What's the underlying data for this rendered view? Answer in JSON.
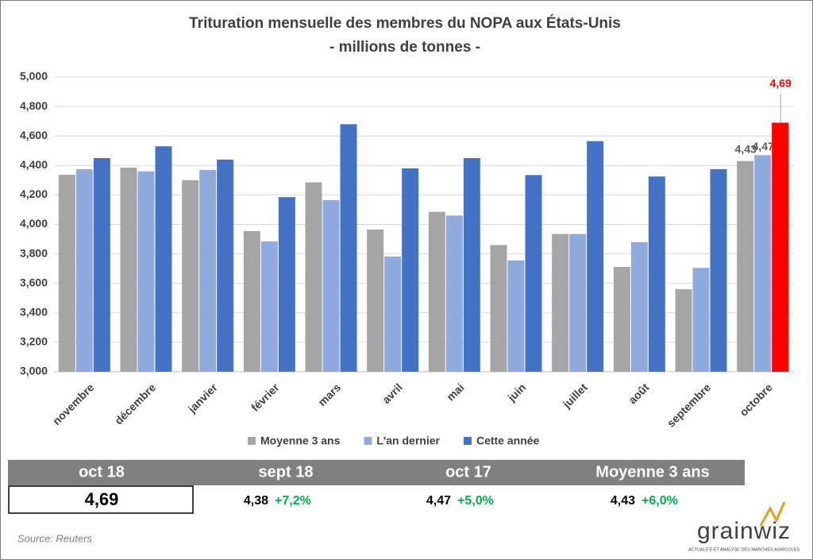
{
  "chart_data": {
    "type": "bar",
    "title": "Trituration mensuelle des membres du NOPA aux États-Unis",
    "subtitle": "- millions de tonnes -",
    "categories": [
      "novembre",
      "décembre",
      "janvier",
      "février",
      "mars",
      "avril",
      "mai",
      "juin",
      "juillet",
      "août",
      "septembre",
      "octobre"
    ],
    "series": [
      {
        "name": "Moyenne 3 ans",
        "color": "#a5a5a5",
        "values": [
          4337,
          4385,
          4300,
          3955,
          4285,
          3965,
          4085,
          3860,
          3935,
          3712,
          3560,
          4430
        ],
        "value_labels": [
          null,
          null,
          null,
          null,
          null,
          null,
          null,
          null,
          null,
          null,
          null,
          "4,43"
        ]
      },
      {
        "name": "L'an dernier",
        "color": "#8faadc",
        "values": [
          4375,
          4360,
          4370,
          3885,
          4165,
          3782,
          4060,
          3755,
          3935,
          3880,
          3705,
          4470
        ],
        "value_labels": [
          null,
          null,
          null,
          null,
          null,
          null,
          null,
          null,
          null,
          null,
          null,
          "4,47"
        ]
      },
      {
        "name": "Cette année",
        "color": "#4472c4",
        "values": [
          4450,
          4530,
          4440,
          4185,
          4680,
          4380,
          4450,
          4335,
          4565,
          4325,
          4375,
          4690
        ],
        "value_labels": [
          null,
          null,
          null,
          null,
          null,
          null,
          null,
          null,
          null,
          null,
          null,
          "4,69"
        ]
      }
    ],
    "highlight": {
      "series": "Cette année",
      "category": "octobre",
      "color": "#ff0000"
    },
    "ylim": [
      3000,
      5000
    ],
    "yticks": [
      {
        "value": 3000,
        "label": "3,000"
      },
      {
        "value": 3200,
        "label": "3,200"
      },
      {
        "value": 3400,
        "label": "3,400"
      },
      {
        "value": 3600,
        "label": "3,600"
      },
      {
        "value": 3800,
        "label": "3,800"
      },
      {
        "value": 4000,
        "label": "4,000"
      },
      {
        "value": 4200,
        "label": "4,200"
      },
      {
        "value": 4400,
        "label": "4,400"
      },
      {
        "value": 4600,
        "label": "4,600"
      },
      {
        "value": 4800,
        "label": "4,800"
      },
      {
        "value": 5000,
        "label": "5,000"
      }
    ],
    "grid": true,
    "legend": "bottom"
  },
  "summary": [
    {
      "header": "oct 18",
      "value": "4,69"
    },
    {
      "header": "sept 18",
      "value": "4,38",
      "change": "+7,2%"
    },
    {
      "header": "oct 17",
      "value": "4,47",
      "change": "+5,0%"
    },
    {
      "header": "Moyenne 3 ans",
      "value": "4,43",
      "change": "+6,0%"
    }
  ],
  "source": "Source: Reuters",
  "logo": {
    "name": "grainwiz",
    "tagline": "ACTUALITÉ ET ANALYSE DES MARCHÉS AGRICOLES"
  }
}
